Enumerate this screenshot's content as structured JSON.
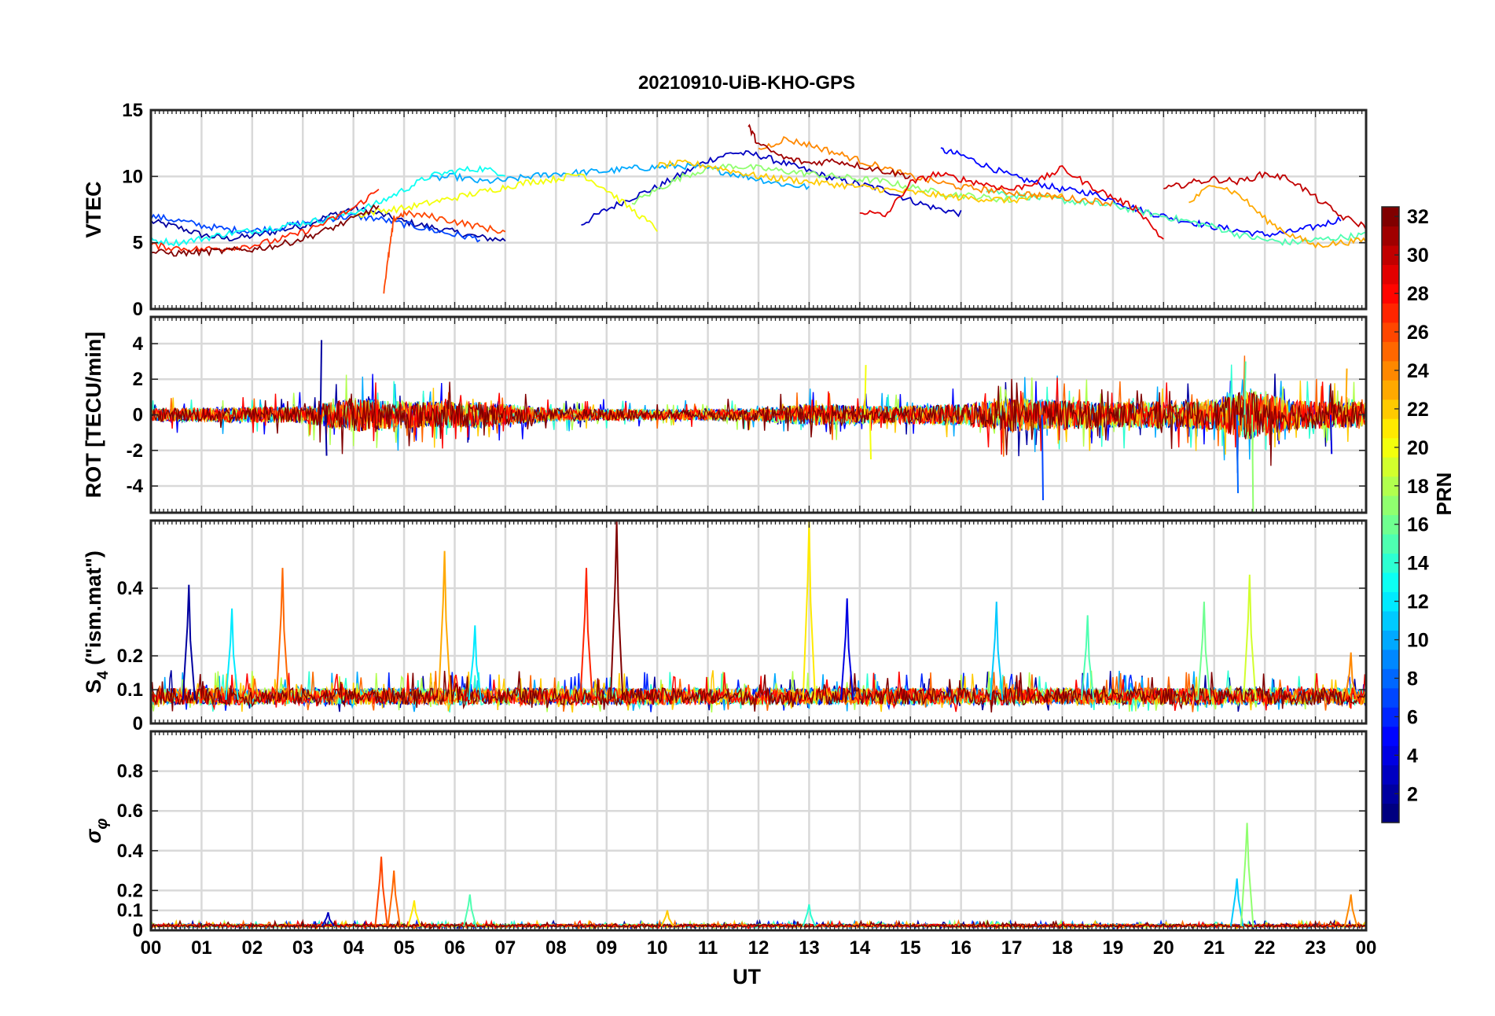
{
  "figure": {
    "title": "20210910-UiB-KHO-GPS",
    "xlabel": "UT",
    "colorbar_label": "PRN"
  },
  "colors": {
    "colormap": "jet",
    "grid": "#d9d9d9",
    "axes": "#262626"
  },
  "chart_data": [
    {
      "type": "line",
      "panel": "vtec",
      "ylabel": "VTEC",
      "xlim": [
        0,
        24
      ],
      "ylim": [
        0,
        15
      ],
      "yticks": [
        0,
        5,
        10,
        15
      ],
      "ytick_labels": [
        "0",
        "5",
        "10",
        "15"
      ],
      "xticks": [
        0,
        1,
        2,
        3,
        4,
        5,
        6,
        7,
        8,
        9,
        10,
        11,
        12,
        13,
        14,
        15,
        16,
        17,
        18,
        19,
        20,
        21,
        22,
        23,
        24
      ],
      "xtick_labels": [
        "00",
        "01",
        "02",
        "03",
        "04",
        "05",
        "06",
        "07",
        "08",
        "09",
        "10",
        "11",
        "12",
        "13",
        "14",
        "15",
        "16",
        "17",
        "18",
        "19",
        "20",
        "21",
        "22",
        "23",
        "00"
      ],
      "grid": true,
      "color_by": "PRN",
      "series": [
        {
          "prn": 2,
          "x": [
            0,
            0.5,
            1,
            1.5,
            2,
            2.5,
            3,
            3.5,
            4,
            4.5,
            5,
            5.5,
            6,
            6.5,
            7
          ],
          "y": [
            6.6,
            6.2,
            5.6,
            5.3,
            5.5,
            5.9,
            6.3,
            7.0,
            7.6,
            7.2,
            6.6,
            6.2,
            5.8,
            5.4,
            5.2
          ]
        },
        {
          "prn": 3,
          "x": [
            8.5,
            9,
            9.5,
            10,
            10.5,
            11,
            11.5,
            12,
            12.5,
            13,
            13.5,
            14,
            14.5,
            15,
            15.5,
            16
          ],
          "y": [
            6.4,
            7.5,
            8.4,
            9.2,
            10.2,
            11.2,
            11.8,
            11.6,
            11.0,
            10.4,
            9.8,
            9.4,
            9.0,
            8.2,
            7.6,
            7.2
          ]
        },
        {
          "prn": 5,
          "x": [
            15.6,
            16,
            16.5,
            17,
            17.5,
            18,
            18.5,
            19,
            19.5,
            20,
            20.5,
            21,
            21.5,
            22,
            22.5,
            23,
            23.5
          ],
          "y": [
            12.0,
            11.6,
            10.8,
            10.0,
            9.5,
            9.0,
            8.8,
            8.2,
            7.5,
            7.0,
            6.6,
            6.2,
            5.9,
            5.6,
            5.8,
            6.2,
            6.8
          ]
        },
        {
          "prn": 7,
          "x": [
            0,
            0.5,
            1,
            1.5,
            2,
            2.5,
            3,
            3.5,
            4,
            4.5,
            5,
            5.5,
            6,
            6.5
          ],
          "y": [
            7.0,
            6.7,
            6.3,
            6.0,
            5.9,
            6.1,
            6.5,
            6.8,
            7.0,
            6.8,
            6.4,
            6.0,
            5.6,
            5.3
          ]
        },
        {
          "prn": 10,
          "x": [
            5.5,
            6,
            6.5,
            7,
            7.5,
            8,
            8.5,
            9,
            9.5,
            10,
            10.5,
            11,
            11.5,
            12,
            12.5,
            13
          ],
          "y": [
            9.8,
            10.0,
            9.6,
            9.7,
            10.0,
            10.2,
            10.3,
            10.4,
            10.6,
            10.7,
            10.8,
            10.6,
            10.2,
            9.8,
            9.4,
            9.2
          ]
        },
        {
          "prn": 13,
          "x": [
            0,
            0.5,
            1,
            1.5,
            2,
            2.5,
            3,
            3.5,
            4,
            4.5,
            5,
            5.5,
            6,
            6.5,
            7
          ],
          "y": [
            5.2,
            5.0,
            5.3,
            5.7,
            5.9,
            6.2,
            6.5,
            6.8,
            7.3,
            8.0,
            9.0,
            10.0,
            10.4,
            10.6,
            10.2
          ]
        },
        {
          "prn": 15,
          "x": [
            16.5,
            17,
            17.5,
            18,
            18.5,
            19,
            19.5,
            20,
            20.5,
            21,
            21.5,
            22,
            22.5,
            23,
            23.5,
            24
          ],
          "y": [
            9.0,
            8.6,
            8.4,
            8.2,
            8.0,
            7.8,
            7.4,
            7.0,
            6.6,
            6.2,
            5.6,
            5.2,
            5.0,
            5.2,
            5.4,
            5.6
          ]
        },
        {
          "prn": 17,
          "x": [
            9.5,
            10,
            10.5,
            11,
            11.5,
            12,
            12.5,
            13,
            13.5,
            14,
            14.5,
            15,
            15.5,
            16,
            16.5,
            17
          ],
          "y": [
            8.0,
            9.0,
            10.0,
            10.6,
            10.8,
            10.6,
            10.4,
            10.2,
            10.0,
            9.8,
            9.6,
            9.2,
            8.8,
            8.6,
            8.4,
            8.2
          ]
        },
        {
          "prn": 20,
          "x": [
            4,
            4.5,
            5,
            5.5,
            6,
            6.5,
            7,
            7.5,
            8,
            8.5,
            9,
            9.5,
            10
          ],
          "y": [
            7.0,
            7.4,
            7.6,
            8.0,
            8.4,
            8.8,
            9.2,
            9.6,
            9.8,
            10.2,
            9.0,
            7.5,
            6.0
          ]
        },
        {
          "prn": 22,
          "x": [
            10,
            10.5,
            11,
            11.5,
            12,
            12.5,
            13,
            13.5,
            14,
            14.5,
            15,
            15.5,
            16,
            16.5,
            17,
            17.5,
            18
          ],
          "y": [
            10.8,
            11.0,
            10.8,
            10.4,
            10.0,
            9.8,
            9.6,
            9.4,
            9.2,
            9.0,
            8.8,
            8.6,
            8.4,
            8.3,
            8.2,
            8.4,
            8.6
          ]
        },
        {
          "prn": 23,
          "x": [
            20.5,
            21,
            21.5,
            22,
            22.5,
            23,
            23.5,
            24
          ],
          "y": [
            8.0,
            9.5,
            8.6,
            6.8,
            5.6,
            4.8,
            5.0,
            5.2
          ]
        },
        {
          "prn": 24,
          "x": [
            12,
            12.5,
            13,
            13.5,
            14,
            14.5,
            15,
            15.5,
            16,
            16.5,
            17,
            17.5,
            18,
            18.5,
            19
          ],
          "y": [
            12.0,
            12.8,
            12.4,
            11.8,
            11.2,
            10.6,
            10.0,
            9.6,
            9.2,
            9.0,
            8.8,
            8.6,
            8.4,
            8.2,
            8.0
          ]
        },
        {
          "prn": 26,
          "x": [
            4.6,
            4.7,
            4.8,
            5,
            5.5,
            6,
            6.5,
            7
          ],
          "y": [
            1.4,
            4.2,
            6.8,
            7.2,
            7.0,
            6.6,
            6.2,
            5.8
          ]
        },
        {
          "prn": 27,
          "x": [
            0,
            0.5,
            1,
            1.5,
            2,
            2.5,
            3,
            3.5,
            4,
            4.5
          ],
          "y": [
            4.8,
            4.6,
            4.5,
            4.6,
            4.8,
            5.2,
            5.8,
            6.6,
            7.6,
            9.0
          ]
        },
        {
          "prn": 29,
          "x": [
            14,
            14.5,
            15,
            15.5,
            16,
            16.5,
            17,
            17.5,
            18,
            18.5,
            19,
            19.5,
            20
          ],
          "y": [
            7.4,
            7.0,
            9.5,
            10.2,
            9.8,
            9.4,
            9.0,
            9.6,
            10.6,
            9.4,
            8.4,
            7.5,
            5.2
          ]
        },
        {
          "prn": 31,
          "x": [
            11.8,
            12,
            12.5,
            13,
            13.5,
            14,
            14.5,
            15
          ],
          "y": [
            13.8,
            12.4,
            11.4,
            11.0,
            11.2,
            10.8,
            10.4,
            10.0
          ]
        },
        {
          "prn": 32,
          "x": [
            0,
            0.5,
            1,
            1.5,
            2,
            2.5,
            3,
            3.5,
            4,
            4.5
          ],
          "y": [
            4.3,
            4.2,
            4.3,
            4.4,
            4.5,
            4.8,
            5.3,
            6.0,
            6.8,
            7.8
          ]
        },
        {
          "prn": 30,
          "x": [
            20,
            20.5,
            21,
            21.5,
            22,
            22.5,
            23,
            23.5,
            24
          ],
          "y": [
            9.0,
            9.5,
            9.8,
            9.6,
            10.2,
            9.8,
            8.4,
            7.0,
            6.2
          ]
        }
      ]
    },
    {
      "type": "line",
      "panel": "rot",
      "ylabel": "ROT [TECU/min]",
      "xlim": [
        0,
        24
      ],
      "ylim": [
        -5.5,
        5.5
      ],
      "yticks": [
        -4,
        -2,
        0,
        2,
        4
      ],
      "ytick_labels": [
        "-4",
        "-2",
        "0",
        "2",
        "4"
      ],
      "grid": true,
      "color_by": "PRN",
      "description_of_values": "noisy fluctuations around 0 TECU/min",
      "peaks": [
        {
          "prn": 2,
          "x": 3.35,
          "y": 4.2
        },
        {
          "prn": 2,
          "x": 3.45,
          "y": -2.3
        },
        {
          "prn": 20,
          "x": 14.1,
          "y": 2.8
        },
        {
          "prn": 20,
          "x": 14.2,
          "y": -2.5
        },
        {
          "prn": 7,
          "x": 17.6,
          "y": -4.8
        },
        {
          "prn": 15,
          "x": 21.6,
          "y": 3.0
        },
        {
          "prn": 17,
          "x": 21.75,
          "y": -5.5
        },
        {
          "prn": 8,
          "x": 21.45,
          "y": -4.4
        },
        {
          "prn": 4,
          "x": 23.3,
          "y": -2.2
        },
        {
          "prn": 23,
          "x": 23.6,
          "y": 2.6
        }
      ],
      "envelope": [
        {
          "x": 0,
          "amp": 0.6
        },
        {
          "x": 3,
          "amp": 0.8
        },
        {
          "x": 4,
          "amp": 1.6
        },
        {
          "x": 5,
          "amp": 1.3
        },
        {
          "x": 6.5,
          "amp": 1.2
        },
        {
          "x": 8,
          "amp": 0.6
        },
        {
          "x": 10,
          "amp": 0.5
        },
        {
          "x": 12,
          "amp": 0.6
        },
        {
          "x": 13,
          "amp": 1.0
        },
        {
          "x": 14.5,
          "amp": 0.8
        },
        {
          "x": 16,
          "amp": 1.0
        },
        {
          "x": 17,
          "amp": 1.6
        },
        {
          "x": 19,
          "amp": 1.2
        },
        {
          "x": 21,
          "amp": 1.4
        },
        {
          "x": 21.7,
          "amp": 2.4
        },
        {
          "x": 22.5,
          "amp": 1.4
        },
        {
          "x": 24,
          "amp": 1.2
        }
      ]
    },
    {
      "type": "line",
      "panel": "s4",
      "ylabel": "S4 (\"ism.mat\")",
      "ylabel_main": "S",
      "ylabel_sub": "4",
      "ylabel_rest": " (\"ism.mat\")",
      "xlim": [
        0,
        24
      ],
      "ylim": [
        0,
        0.6
      ],
      "yticks": [
        0,
        0.1,
        0.2,
        0.4
      ],
      "ytick_labels": [
        "0",
        "0.1",
        "0.2",
        "0.4"
      ],
      "grid": true,
      "color_by": "PRN",
      "baseline": 0.07,
      "peaks": [
        {
          "prn": 2,
          "x": 0.75,
          "y": 0.41
        },
        {
          "prn": 12,
          "x": 1.6,
          "y": 0.34
        },
        {
          "prn": 25,
          "x": 2.6,
          "y": 0.46
        },
        {
          "prn": 23,
          "x": 5.8,
          "y": 0.51
        },
        {
          "prn": 12,
          "x": 6.4,
          "y": 0.29
        },
        {
          "prn": 27,
          "x": 8.6,
          "y": 0.46
        },
        {
          "prn": 32,
          "x": 9.2,
          "y": 0.6
        },
        {
          "prn": 21,
          "x": 13.0,
          "y": 0.6
        },
        {
          "prn": 4,
          "x": 13.75,
          "y": 0.37
        },
        {
          "prn": 11,
          "x": 16.7,
          "y": 0.36
        },
        {
          "prn": 15,
          "x": 18.5,
          "y": 0.32
        },
        {
          "prn": 16,
          "x": 20.8,
          "y": 0.36
        },
        {
          "prn": 19,
          "x": 21.7,
          "y": 0.44
        },
        {
          "prn": 24,
          "x": 23.7,
          "y": 0.21
        }
      ]
    },
    {
      "type": "line",
      "panel": "sigma_phi",
      "ylabel": "σ φ",
      "ylabel_main": "σ",
      "ylabel_sub": "φ",
      "xlim": [
        0,
        24
      ],
      "ylim": [
        0,
        1
      ],
      "yticks": [
        0,
        0.1,
        0.2,
        0.4,
        0.6,
        0.8
      ],
      "ytick_labels": [
        "0",
        "0.1",
        "0.2",
        "0.4",
        "0.6",
        "0.8"
      ],
      "grid": true,
      "color_by": "PRN",
      "baseline": 0.02,
      "peaks": [
        {
          "prn": 3,
          "x": 3.5,
          "y": 0.09
        },
        {
          "prn": 26,
          "x": 4.55,
          "y": 0.37
        },
        {
          "prn": 25,
          "x": 4.8,
          "y": 0.3
        },
        {
          "prn": 21,
          "x": 5.2,
          "y": 0.15
        },
        {
          "prn": 15,
          "x": 6.3,
          "y": 0.18
        },
        {
          "prn": 22,
          "x": 10.2,
          "y": 0.1
        },
        {
          "prn": 14,
          "x": 13.0,
          "y": 0.13
        },
        {
          "prn": 11,
          "x": 21.45,
          "y": 0.26
        },
        {
          "prn": 17,
          "x": 21.65,
          "y": 0.54
        },
        {
          "prn": 24,
          "x": 23.7,
          "y": 0.18
        }
      ]
    }
  ],
  "colorbar": {
    "min": 1,
    "max": 32,
    "ticks": [
      2,
      4,
      6,
      8,
      10,
      12,
      14,
      16,
      18,
      20,
      22,
      24,
      26,
      28,
      30,
      32
    ],
    "tick_labels": [
      "2",
      "4",
      "6",
      "8",
      "10",
      "12",
      "14",
      "16",
      "18",
      "20",
      "22",
      "24",
      "26",
      "28",
      "30",
      "32"
    ]
  }
}
